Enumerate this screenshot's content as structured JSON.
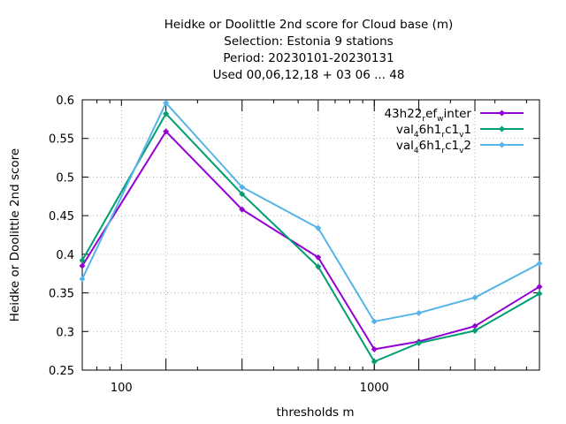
{
  "chart_data": {
    "type": "line",
    "title_lines": [
      "Heidke or Doolittle 2nd score  for Cloud base (m)",
      "Selection: Estonia      9 stations",
      "Period: 20230101-20230131",
      "Used  00,06,12,18  + 03 06 ... 48"
    ],
    "xlabel": "thresholds m",
    "ylabel": "Heidke or Doolittle 2nd score",
    "x_scale": "log",
    "xlim": [
      70,
      4500
    ],
    "ylim": [
      0.25,
      0.6
    ],
    "y_ticks": [
      "0.25",
      "0.3",
      "0.35",
      "0.4",
      "0.45",
      "0.5",
      "0.55",
      "0.6"
    ],
    "x_ticks": [
      "100",
      "1000"
    ],
    "x": [
      70,
      150,
      300,
      600,
      1000,
      1500,
      2500,
      4500
    ],
    "grid": true,
    "legend_position": "top-right",
    "series": [
      {
        "name_parts": [
          {
            "t": "43h22"
          },
          {
            "t": "r",
            "sub": true
          },
          {
            "t": "ef"
          },
          {
            "t": "w",
            "sub": true
          },
          {
            "t": "inter"
          }
        ],
        "color": "#9400d3",
        "values": [
          0.385,
          0.559,
          0.458,
          0.396,
          0.277,
          0.287,
          0.307,
          0.358
        ]
      },
      {
        "name_parts": [
          {
            "t": "val"
          },
          {
            "t": "4",
            "sub": true
          },
          {
            "t": "6h1"
          },
          {
            "t": "r",
            "sub": true
          },
          {
            "t": "c1"
          },
          {
            "t": "v",
            "sub": true
          },
          {
            "t": "1"
          }
        ],
        "color": "#009e73",
        "values": [
          0.392,
          0.582,
          0.478,
          0.384,
          0.261,
          0.285,
          0.301,
          0.349
        ]
      },
      {
        "name_parts": [
          {
            "t": "val"
          },
          {
            "t": "4",
            "sub": true
          },
          {
            "t": "6h1"
          },
          {
            "t": "r",
            "sub": true
          },
          {
            "t": "c1"
          },
          {
            "t": "v",
            "sub": true
          },
          {
            "t": "2"
          }
        ],
        "color": "#56b4e9",
        "values": [
          0.368,
          0.596,
          0.487,
          0.434,
          0.313,
          0.324,
          0.344,
          0.388
        ]
      }
    ]
  }
}
